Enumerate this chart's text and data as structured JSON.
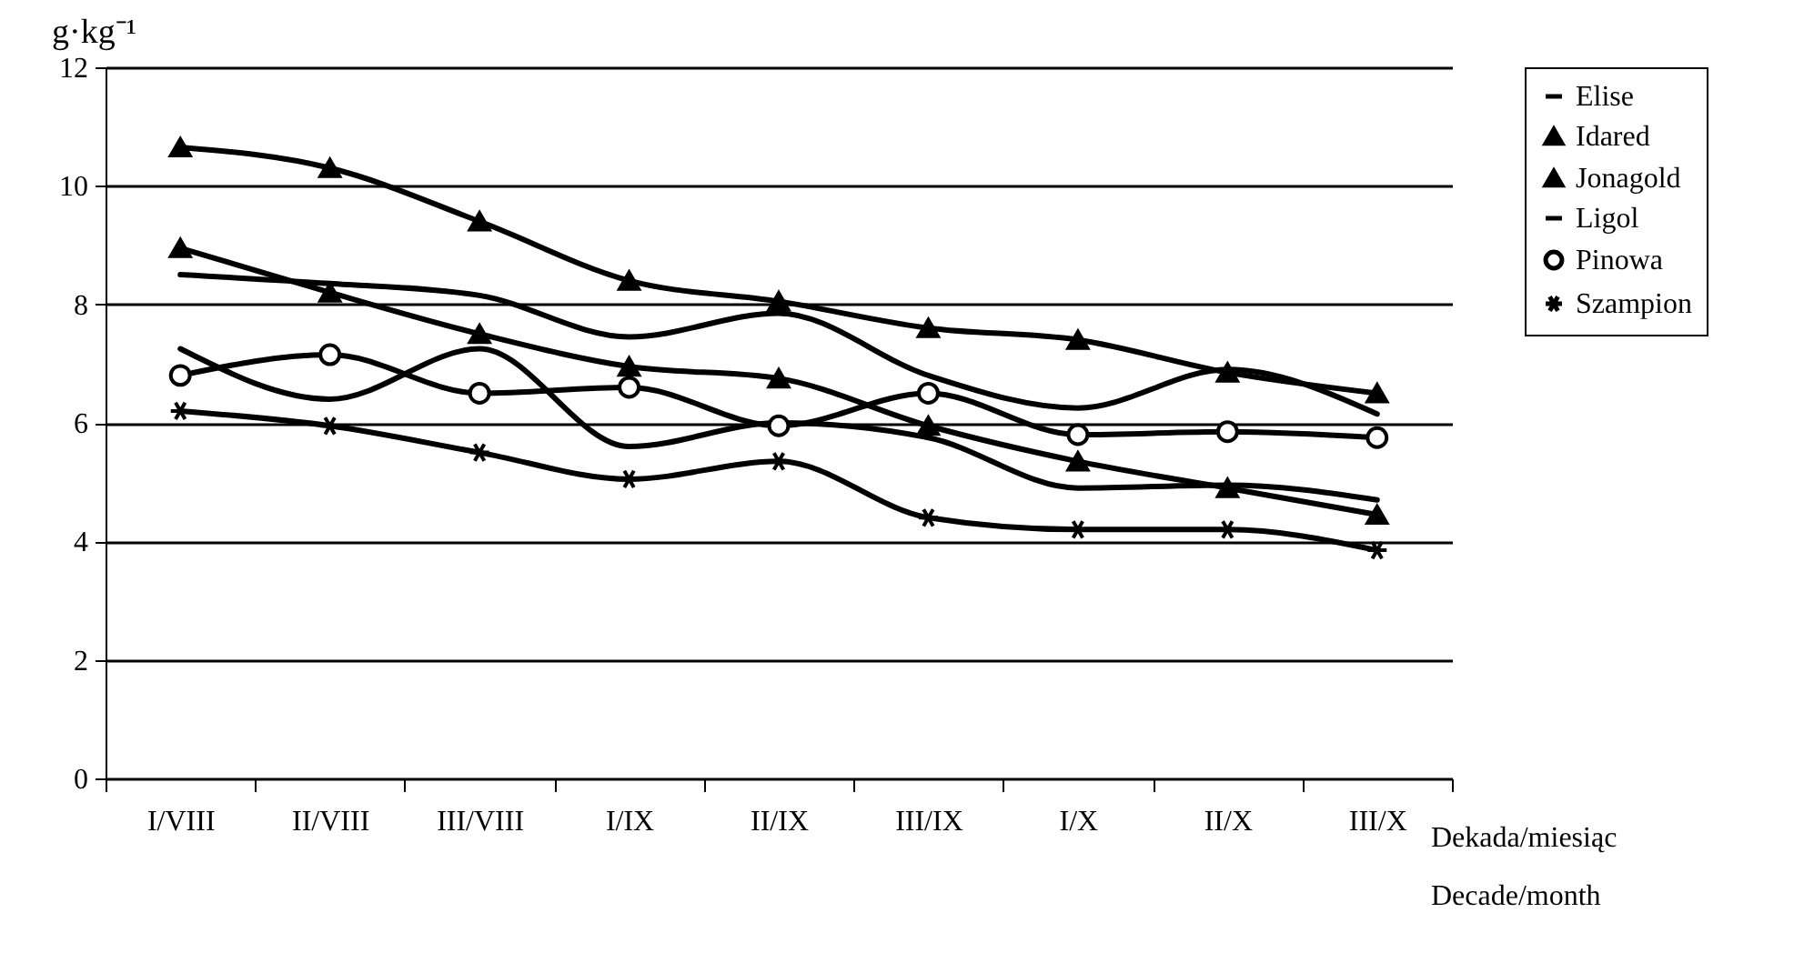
{
  "chart_data": {
    "type": "line",
    "ylabel": "g·kg⁻¹",
    "xlabel": "Dekada/miesiąc\nDecade/month",
    "categories": [
      "I/VIII",
      "II/VIII",
      "III/VIII",
      "I/IX",
      "II/IX",
      "III/IX",
      "I/X",
      "II/X",
      "III/X"
    ],
    "ylim": [
      0,
      12
    ],
    "yticks": [
      0,
      2,
      4,
      6,
      8,
      10,
      12
    ],
    "grid": "y",
    "legend": "right",
    "line_style": "solid",
    "series": [
      {
        "name": "Elise",
        "color": "#000000",
        "marker": "none",
        "values": [
          8.5,
          8.35,
          8.15,
          7.45,
          7.85,
          6.8,
          6.25,
          6.9,
          6.15
        ]
      },
      {
        "name": "Idared",
        "color": "#000000",
        "marker": "triangle",
        "values": [
          10.65,
          10.3,
          9.4,
          8.4,
          8.05,
          7.6,
          7.4,
          6.85,
          6.5
        ]
      },
      {
        "name": "Jonagold",
        "color": "#000000",
        "marker": "triangle",
        "values": [
          8.95,
          8.2,
          7.5,
          6.95,
          6.75,
          5.95,
          5.35,
          4.9,
          4.45
        ]
      },
      {
        "name": "Ligol",
        "color": "#000000",
        "marker": "none",
        "values": [
          7.25,
          6.4,
          7.25,
          5.6,
          6.0,
          5.75,
          4.9,
          4.95,
          4.7
        ]
      },
      {
        "name": "Pinowa",
        "color": "#000000",
        "marker": "circle",
        "values": [
          6.8,
          7.15,
          6.5,
          6.6,
          5.95,
          6.5,
          5.8,
          5.85,
          5.75
        ]
      },
      {
        "name": "Szampion",
        "color": "#000000",
        "marker": "cross",
        "values": [
          6.2,
          5.95,
          5.5,
          5.05,
          5.35,
          4.4,
          4.2,
          4.2,
          3.85
        ]
      }
    ]
  }
}
